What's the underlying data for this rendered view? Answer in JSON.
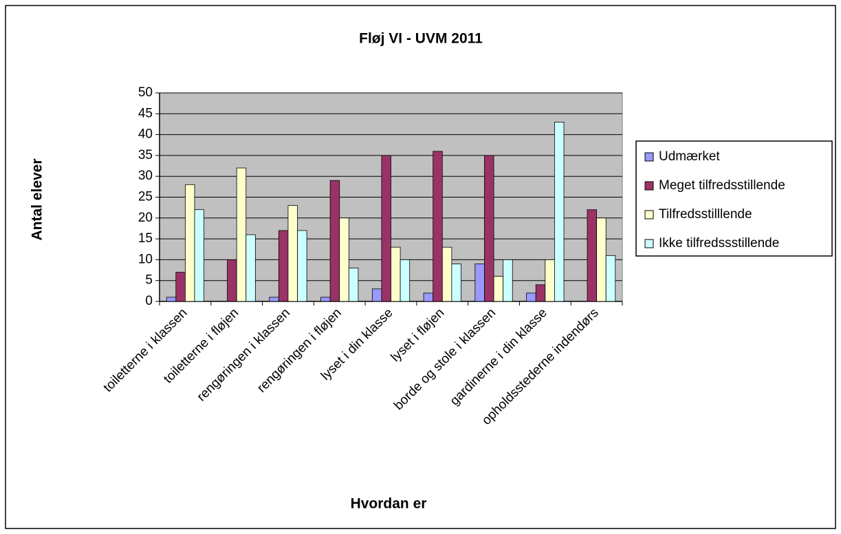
{
  "chart_data": {
    "type": "bar",
    "title": "Fløj VI - UVM 2011",
    "x_label": "Hvordan er",
    "y_label": "Antal elever",
    "categories": [
      "toiletterne i klassen",
      "toiletterne i fløjen",
      "rengøringen i klassen",
      "rengøringen i fløjen",
      "lyset i din klasse",
      "lyset i fløjen",
      "borde og stole i klassen",
      "gardinerne i din klasse",
      "opholdsstederne indendørs"
    ],
    "series": [
      {
        "name": "Udmærket",
        "color": "#9999ff",
        "values": [
          1,
          0,
          1,
          1,
          3,
          2,
          9,
          2,
          0
        ]
      },
      {
        "name": "Meget tilfredsstillende",
        "color": "#993366",
        "values": [
          7,
          10,
          17,
          29,
          35,
          36,
          35,
          4,
          22
        ]
      },
      {
        "name": "Tilfredsstilllende",
        "color": "#ffffcc",
        "values": [
          28,
          32,
          23,
          20,
          13,
          13,
          6,
          10,
          20
        ]
      },
      {
        "name": "Ikke tilfredssstillende",
        "color": "#ccffff",
        "values": [
          22,
          16,
          17,
          8,
          10,
          9,
          10,
          43,
          11
        ]
      }
    ],
    "ylim": [
      0,
      50
    ],
    "yticks": [
      0,
      5,
      10,
      15,
      20,
      25,
      30,
      35,
      40,
      45,
      50
    ],
    "grid": true,
    "legend": "right",
    "plot_background": "#c0c0c0"
  }
}
